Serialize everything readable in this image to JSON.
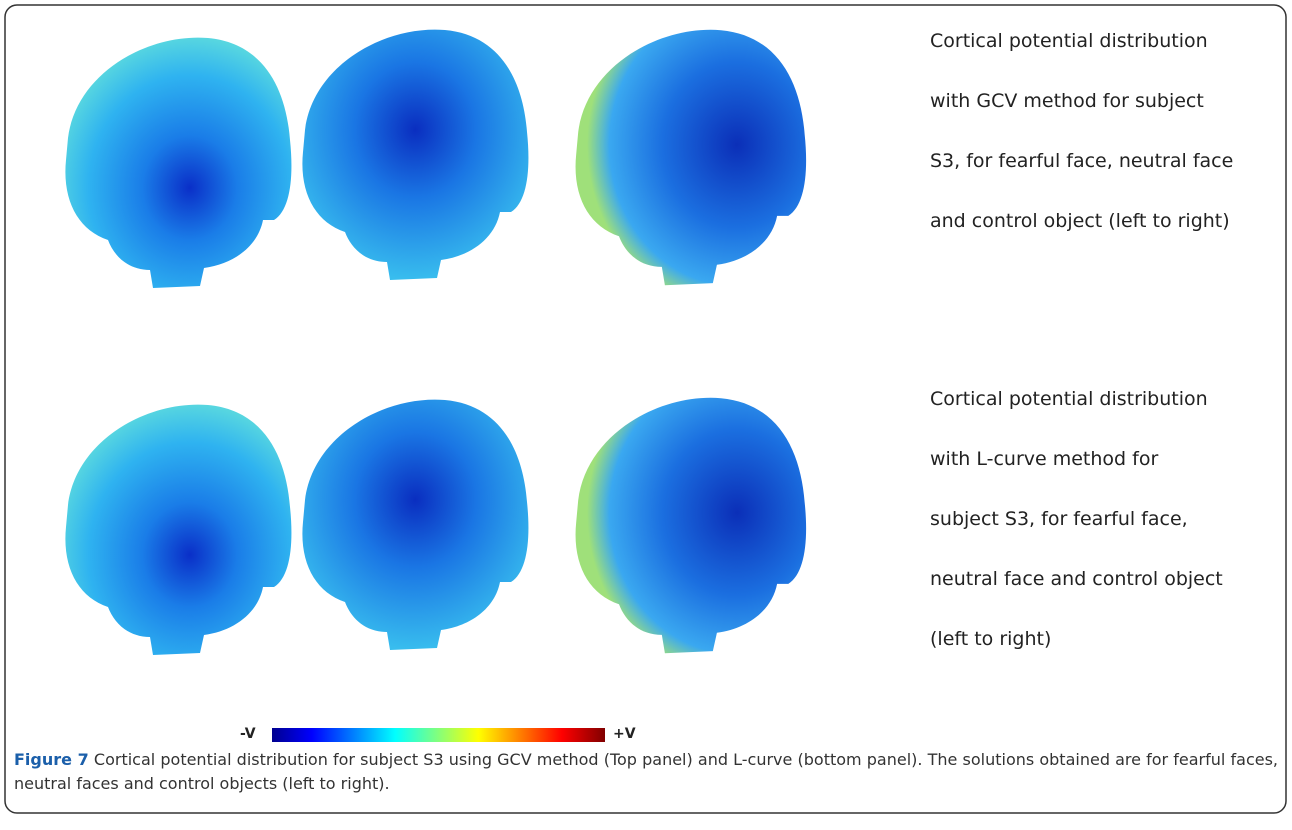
{
  "figure": {
    "top_panel_text": [
      "Cortical potential distribution",
      "with GCV method for subject",
      "S3, for fearful face, neutral face",
      "and control object (left to right)"
    ],
    "bottom_panel_text": [
      "Cortical potential distribution",
      "with L-curve method for",
      "subject S3, for fearful face,",
      "neutral face and control object",
      "(left to right)"
    ],
    "colorbar": {
      "min_label": "-V",
      "max_label": "+V"
    },
    "caption": {
      "label": "Figure 7",
      "text": "Cortical potential distribution for subject S3 using GCV method (Top panel) and L-curve (bottom panel). The solutions obtained are for fearful faces, neutral faces and control objects (left to right)."
    }
  }
}
